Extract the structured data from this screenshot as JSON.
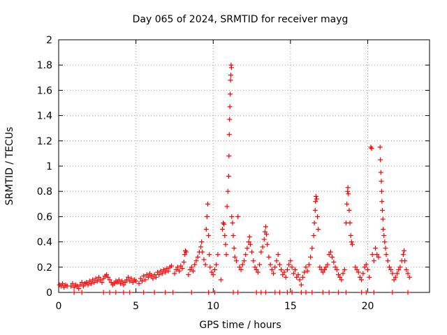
{
  "chart_data": {
    "type": "scatter",
    "title": "Day 065 of 2024, SRMTID for receiver mayg",
    "xlabel": "GPS time / hours",
    "ylabel": "SRMTID / TECUs",
    "xlim": [
      0,
      24
    ],
    "ylim": [
      0,
      2
    ],
    "xticks": [
      0,
      5,
      10,
      15,
      20
    ],
    "xtick_labels": [
      "0",
      "5",
      "10",
      "15",
      "20"
    ],
    "yticks": [
      0,
      0.2,
      0.4,
      0.6,
      0.8,
      1.0,
      1.2,
      1.4,
      1.6,
      1.8,
      2.0
    ],
    "ytick_labels": [
      "0",
      "0.2",
      "0.4",
      "0.6",
      "0.8",
      "1",
      "1.2",
      "1.4",
      "1.6",
      "1.8",
      "2"
    ],
    "grid": true,
    "marker": "+",
    "color": "#ff0000",
    "series": [
      {
        "name": "SRMTID",
        "points": [
          [
            0.05,
            0.06
          ],
          [
            0.15,
            0.05
          ],
          [
            0.25,
            0.07
          ],
          [
            0.35,
            0.04
          ],
          [
            0.45,
            0.06
          ],
          [
            0.55,
            0.05
          ],
          [
            0.8,
            0.05
          ],
          [
            0.9,
            0.07
          ],
          [
            1.0,
            0.04
          ],
          [
            1.1,
            0.06
          ],
          [
            1.2,
            0.05
          ],
          [
            1.3,
            0.03
          ],
          [
            1.4,
            0.06
          ],
          [
            1.5,
            0.08
          ],
          [
            1.6,
            0.05
          ],
          [
            1.7,
            0.07
          ],
          [
            1.8,
            0.08
          ],
          [
            1.9,
            0.06
          ],
          [
            2.0,
            0.09
          ],
          [
            2.1,
            0.07
          ],
          [
            2.2,
            0.1
          ],
          [
            2.3,
            0.08
          ],
          [
            2.4,
            0.11
          ],
          [
            2.5,
            0.09
          ],
          [
            2.6,
            0.12
          ],
          [
            2.7,
            0.1
          ],
          [
            2.8,
            0.08
          ],
          [
            2.9,
            0.11
          ],
          [
            3.0,
            0.13
          ],
          [
            3.1,
            0.14
          ],
          [
            3.2,
            0.12
          ],
          [
            3.3,
            0.1
          ],
          [
            3.4,
            0.08
          ],
          [
            3.5,
            0.06
          ],
          [
            3.6,
            0.07
          ],
          [
            3.7,
            0.09
          ],
          [
            3.8,
            0.08
          ],
          [
            3.9,
            0.1
          ],
          [
            4.0,
            0.07
          ],
          [
            4.1,
            0.09
          ],
          [
            4.2,
            0.06
          ],
          [
            4.3,
            0.08
          ],
          [
            4.4,
            0.1
          ],
          [
            4.5,
            0.12
          ],
          [
            4.6,
            0.09
          ],
          [
            4.7,
            0.11
          ],
          [
            4.8,
            0.08
          ],
          [
            4.9,
            0.1
          ],
          [
            5.0,
            0.09
          ],
          [
            5.2,
            0.07
          ],
          [
            5.3,
            0.11
          ],
          [
            5.4,
            0.09
          ],
          [
            5.5,
            0.13
          ],
          [
            5.6,
            0.1
          ],
          [
            5.7,
            0.14
          ],
          [
            5.8,
            0.12
          ],
          [
            5.9,
            0.15
          ],
          [
            6.0,
            0.13
          ],
          [
            6.1,
            0.11
          ],
          [
            6.2,
            0.14
          ],
          [
            6.3,
            0.12
          ],
          [
            6.4,
            0.16
          ],
          [
            6.5,
            0.14
          ],
          [
            6.6,
            0.17
          ],
          [
            6.7,
            0.15
          ],
          [
            6.8,
            0.18
          ],
          [
            6.9,
            0.16
          ],
          [
            7.0,
            0.19
          ],
          [
            7.1,
            0.17
          ],
          [
            7.2,
            0.2
          ],
          [
            7.3,
            0.21
          ],
          [
            7.5,
            0.15
          ],
          [
            7.6,
            0.18
          ],
          [
            7.7,
            0.2
          ],
          [
            7.8,
            0.17
          ],
          [
            7.9,
            0.21
          ],
          [
            8.0,
            0.19
          ],
          [
            8.1,
            0.24
          ],
          [
            8.15,
            0.3
          ],
          [
            8.2,
            0.33
          ],
          [
            8.25,
            0.32
          ],
          [
            8.4,
            0.14
          ],
          [
            8.5,
            0.18
          ],
          [
            8.6,
            0.2
          ],
          [
            8.7,
            0.17
          ],
          [
            8.8,
            0.22
          ],
          [
            8.9,
            0.25
          ],
          [
            9.0,
            0.28
          ],
          [
            9.1,
            0.32
          ],
          [
            9.2,
            0.36
          ],
          [
            9.25,
            0.4
          ],
          [
            9.3,
            0.32
          ],
          [
            9.4,
            0.26
          ],
          [
            9.5,
            0.22
          ],
          [
            9.55,
            0.5
          ],
          [
            9.6,
            0.6
          ],
          [
            9.65,
            0.7
          ],
          [
            9.7,
            0.45
          ],
          [
            9.75,
            0.3
          ],
          [
            9.8,
            0.2
          ],
          [
            9.9,
            0.16
          ],
          [
            10.0,
            0.14
          ],
          [
            10.1,
            0.18
          ],
          [
            10.2,
            0.22
          ],
          [
            10.3,
            0.3
          ],
          [
            10.5,
            0.1
          ],
          [
            10.6,
            0.5
          ],
          [
            10.65,
            0.55
          ],
          [
            10.7,
            0.54
          ],
          [
            10.75,
            0.45
          ],
          [
            10.8,
            0.38
          ],
          [
            10.85,
            0.3
          ],
          [
            10.9,
            0.68
          ],
          [
            10.95,
            0.8
          ],
          [
            11.0,
            0.92
          ],
          [
            11.02,
            1.08
          ],
          [
            11.04,
            1.25
          ],
          [
            11.06,
            1.37
          ],
          [
            11.08,
            1.47
          ],
          [
            11.1,
            1.57
          ],
          [
            11.12,
            1.68
          ],
          [
            11.14,
            1.72
          ],
          [
            11.16,
            1.8
          ],
          [
            11.18,
            1.78
          ],
          [
            11.2,
            0.6
          ],
          [
            11.25,
            0.55
          ],
          [
            11.3,
            0.45
          ],
          [
            11.35,
            0.35
          ],
          [
            11.4,
            0.28
          ],
          [
            11.5,
            0.25
          ],
          [
            11.6,
            0.6
          ],
          [
            11.7,
            0.2
          ],
          [
            11.8,
            0.18
          ],
          [
            11.9,
            0.22
          ],
          [
            12.0,
            0.25
          ],
          [
            12.1,
            0.3
          ],
          [
            12.2,
            0.35
          ],
          [
            12.3,
            0.4
          ],
          [
            12.35,
            0.44
          ],
          [
            12.4,
            0.38
          ],
          [
            12.5,
            0.32
          ],
          [
            12.6,
            0.25
          ],
          [
            12.7,
            0.2
          ],
          [
            12.8,
            0.18
          ],
          [
            12.9,
            0.16
          ],
          [
            13.0,
            0.22
          ],
          [
            13.1,
            0.32
          ],
          [
            13.2,
            0.36
          ],
          [
            13.3,
            0.42
          ],
          [
            13.35,
            0.48
          ],
          [
            13.4,
            0.52
          ],
          [
            13.45,
            0.46
          ],
          [
            13.5,
            0.38
          ],
          [
            13.6,
            0.28
          ],
          [
            13.7,
            0.22
          ],
          [
            13.8,
            0.18
          ],
          [
            13.9,
            0.15
          ],
          [
            14.0,
            0.2
          ],
          [
            14.1,
            0.25
          ],
          [
            14.2,
            0.3
          ],
          [
            14.3,
            0.22
          ],
          [
            14.4,
            0.18
          ],
          [
            14.5,
            0.14
          ],
          [
            14.6,
            0.16
          ],
          [
            14.7,
            0.12
          ],
          [
            14.8,
            0.18
          ],
          [
            14.9,
            0.22
          ],
          [
            15.0,
            0.25
          ],
          [
            15.1,
            0.2
          ],
          [
            15.2,
            0.15
          ],
          [
            15.3,
            0.18
          ],
          [
            15.4,
            0.12
          ],
          [
            15.5,
            0.14
          ],
          [
            15.6,
            0.1
          ],
          [
            15.7,
            0.06
          ],
          [
            15.8,
            0.12
          ],
          [
            15.9,
            0.16
          ],
          [
            16.0,
            0.2
          ],
          [
            16.1,
            0.17
          ],
          [
            16.2,
            0.22
          ],
          [
            16.3,
            0.28
          ],
          [
            16.4,
            0.35
          ],
          [
            16.5,
            0.45
          ],
          [
            16.55,
            0.55
          ],
          [
            16.6,
            0.65
          ],
          [
            16.62,
            0.72
          ],
          [
            16.65,
            0.76
          ],
          [
            16.7,
            0.74
          ],
          [
            16.75,
            0.6
          ],
          [
            16.8,
            0.5
          ],
          [
            16.9,
            0.2
          ],
          [
            17.0,
            0.18
          ],
          [
            17.1,
            0.16
          ],
          [
            17.2,
            0.18
          ],
          [
            17.3,
            0.2
          ],
          [
            17.4,
            0.22
          ],
          [
            17.5,
            0.3
          ],
          [
            17.6,
            0.32
          ],
          [
            17.7,
            0.28
          ],
          [
            17.8,
            0.24
          ],
          [
            17.9,
            0.2
          ],
          [
            18.0,
            0.18
          ],
          [
            18.1,
            0.14
          ],
          [
            18.2,
            0.12
          ],
          [
            18.3,
            0.1
          ],
          [
            18.4,
            0.15
          ],
          [
            18.5,
            0.18
          ],
          [
            18.6,
            0.55
          ],
          [
            18.65,
            0.7
          ],
          [
            18.7,
            0.8
          ],
          [
            18.72,
            0.83
          ],
          [
            18.75,
            0.78
          ],
          [
            18.8,
            0.65
          ],
          [
            18.85,
            0.55
          ],
          [
            18.9,
            0.45
          ],
          [
            18.95,
            0.4
          ],
          [
            19.0,
            0.38
          ],
          [
            19.2,
            0.2
          ],
          [
            19.3,
            0.18
          ],
          [
            19.4,
            0.16
          ],
          [
            19.5,
            0.12
          ],
          [
            19.6,
            0.1
          ],
          [
            19.7,
            0.15
          ],
          [
            19.8,
            0.2
          ],
          [
            19.9,
            0.22
          ],
          [
            20.0,
            0.18
          ],
          [
            20.1,
            0.12
          ],
          [
            20.2,
            1.15
          ],
          [
            20.25,
            1.14
          ],
          [
            20.3,
            0.3
          ],
          [
            20.4,
            0.25
          ],
          [
            20.5,
            0.35
          ],
          [
            20.6,
            0.3
          ],
          [
            20.7,
            0.28
          ],
          [
            20.8,
            1.15
          ],
          [
            20.82,
            1.05
          ],
          [
            20.85,
            0.95
          ],
          [
            20.88,
            0.88
          ],
          [
            20.9,
            0.8
          ],
          [
            20.92,
            0.72
          ],
          [
            20.95,
            0.65
          ],
          [
            20.98,
            0.58
          ],
          [
            21.0,
            0.5
          ],
          [
            21.05,
            0.45
          ],
          [
            21.1,
            0.4
          ],
          [
            21.15,
            0.35
          ],
          [
            21.2,
            0.3
          ],
          [
            21.3,
            0.25
          ],
          [
            21.4,
            0.2
          ],
          [
            21.5,
            0.18
          ],
          [
            21.6,
            0.15
          ],
          [
            21.7,
            0.1
          ],
          [
            21.8,
            0.12
          ],
          [
            21.9,
            0.15
          ],
          [
            22.0,
            0.18
          ],
          [
            22.1,
            0.2
          ],
          [
            22.2,
            0.25
          ],
          [
            22.3,
            0.3
          ],
          [
            22.35,
            0.33
          ],
          [
            22.4,
            0.25
          ],
          [
            22.5,
            0.18
          ],
          [
            22.6,
            0.15
          ],
          [
            22.7,
            0.12
          ],
          [
            1.0,
            0.0
          ],
          [
            1.5,
            0.0
          ],
          [
            2.9,
            0.0
          ],
          [
            3.3,
            0.0
          ],
          [
            3.7,
            0.0
          ],
          [
            4.2,
            0.0
          ],
          [
            4.6,
            0.0
          ],
          [
            5.5,
            0.0
          ],
          [
            6.2,
            0.0
          ],
          [
            6.9,
            0.0
          ],
          [
            7.4,
            0.0
          ],
          [
            8.6,
            0.0
          ],
          [
            9.7,
            0.0
          ],
          [
            10.1,
            0.0
          ],
          [
            11.3,
            0.0
          ],
          [
            11.6,
            0.0
          ],
          [
            12.8,
            0.0
          ],
          [
            13.1,
            0.0
          ],
          [
            13.4,
            0.0
          ],
          [
            14.0,
            0.0
          ],
          [
            14.3,
            0.0
          ],
          [
            14.8,
            0.0
          ],
          [
            15.1,
            0.0
          ],
          [
            15.7,
            0.0
          ],
          [
            16.0,
            0.0
          ],
          [
            16.4,
            0.0
          ],
          [
            17.1,
            0.0
          ],
          [
            17.5,
            0.0
          ],
          [
            18.1,
            0.0
          ],
          [
            18.6,
            0.0
          ],
          [
            19.6,
            0.0
          ],
          [
            19.9,
            0.0
          ],
          [
            20.4,
            0.0
          ],
          [
            21.6,
            0.0
          ],
          [
            22.6,
            0.0
          ]
        ]
      }
    ]
  }
}
